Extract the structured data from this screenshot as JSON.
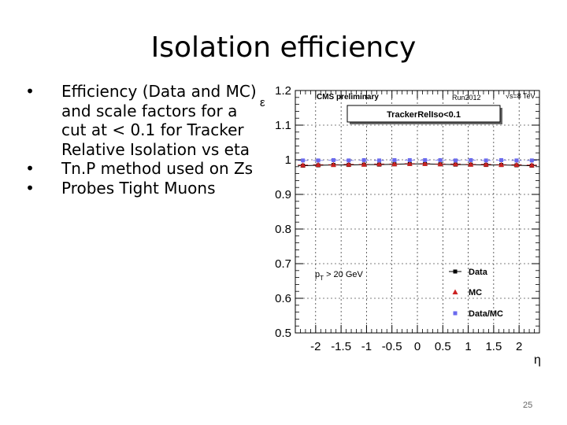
{
  "slide": {
    "title": "Isolation efficiency",
    "bullets": [
      "Efficiency (Data and MC) and scale factors for a cut at < 0.1 for Tracker Relative Isolation vs eta",
      "Tn.P method used on Zs",
      "Probes Tight Muons"
    ],
    "bullet_symbol": "•",
    "page_number": "25"
  },
  "chart_data": {
    "type": "scatter",
    "header_left": "CMS preliminary",
    "header_run": "Run2012",
    "header_energy": "√s=8 TeV",
    "cut_label": "TrackerRelIso<0.1",
    "pt_label": "p",
    "pt_sub": "T",
    "pt_rest": " > 20 GeV",
    "xlabel": "η",
    "ylabel": "ε",
    "xlim": [
      -2.4,
      2.4
    ],
    "ylim": [
      0.5,
      1.2
    ],
    "x_ticks": [
      -2,
      -1.5,
      -1,
      -0.5,
      0,
      0.5,
      1,
      1.5,
      2
    ],
    "x_tick_labels": [
      "-2",
      "-1.5",
      "-1",
      "-0.5",
      "0",
      "0.5",
      "1",
      "1.5",
      "2"
    ],
    "y_ticks": [
      0.5,
      0.6,
      0.7,
      0.8,
      0.9,
      1,
      1.1,
      1.2
    ],
    "y_tick_labels": [
      "0.5",
      "0.6",
      "0.7",
      "0.8",
      "0.9",
      "1",
      "1.1",
      "1.2"
    ],
    "grid": true,
    "legend_position": "bottom-right",
    "series": [
      {
        "name": "Data",
        "color": "#000000",
        "marker": "square",
        "line": true,
        "x": [
          -2.25,
          -1.95,
          -1.65,
          -1.35,
          -1.05,
          -0.75,
          -0.45,
          -0.15,
          0.15,
          0.45,
          0.75,
          1.05,
          1.35,
          1.65,
          1.95,
          2.25
        ],
        "y": [
          0.983,
          0.984,
          0.985,
          0.985,
          0.986,
          0.986,
          0.987,
          0.988,
          0.988,
          0.987,
          0.986,
          0.986,
          0.985,
          0.985,
          0.984,
          0.983
        ]
      },
      {
        "name": "MC",
        "color": "#cc2222",
        "marker": "triangle",
        "line": false,
        "x": [
          -2.25,
          -1.95,
          -1.65,
          -1.35,
          -1.05,
          -0.75,
          -0.45,
          -0.15,
          0.15,
          0.45,
          0.75,
          1.05,
          1.35,
          1.65,
          1.95,
          2.25
        ],
        "y": [
          0.985,
          0.986,
          0.986,
          0.987,
          0.987,
          0.988,
          0.988,
          0.989,
          0.989,
          0.988,
          0.988,
          0.987,
          0.987,
          0.986,
          0.986,
          0.985
        ]
      },
      {
        "name": "Data/MC",
        "color": "#6a6aee",
        "marker": "square",
        "line": false,
        "x": [
          -2.25,
          -1.95,
          -1.65,
          -1.35,
          -1.05,
          -0.75,
          -0.45,
          -0.15,
          0.15,
          0.45,
          0.75,
          1.05,
          1.35,
          1.65,
          1.95,
          2.25
        ],
        "y": [
          0.998,
          0.998,
          0.999,
          0.998,
          0.999,
          0.998,
          0.999,
          0.999,
          0.999,
          0.999,
          0.998,
          0.999,
          0.998,
          0.999,
          0.998,
          0.998
        ]
      }
    ]
  }
}
